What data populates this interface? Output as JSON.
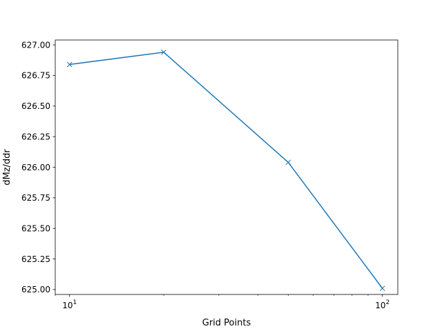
{
  "chart_data": {
    "type": "line",
    "title": "",
    "xlabel": "Grid Points",
    "ylabel": "dMz/ddr",
    "xscale": "log",
    "xlim": [
      9.0,
      112
    ],
    "ylim": [
      624.96,
      627.04
    ],
    "grid": false,
    "legend": "none",
    "x_ticks": [
      {
        "value": 10,
        "base": "10",
        "exp": "1"
      },
      {
        "value": 100,
        "base": "10",
        "exp": "2"
      }
    ],
    "y_ticks": [
      {
        "value": 625.0,
        "label": "625.00"
      },
      {
        "value": 625.25,
        "label": "625.25"
      },
      {
        "value": 625.5,
        "label": "625.50"
      },
      {
        "value": 625.75,
        "label": "625.75"
      },
      {
        "value": 626.0,
        "label": "626.00"
      },
      {
        "value": 626.25,
        "label": "626.25"
      },
      {
        "value": 626.5,
        "label": "626.50"
      },
      {
        "value": 626.75,
        "label": "626.75"
      },
      {
        "value": 627.0,
        "label": "627.00"
      }
    ],
    "series": [
      {
        "color": "#1f77b4",
        "marker": "x",
        "x": [
          10,
          20,
          50,
          100
        ],
        "y": [
          626.84,
          626.94,
          626.04,
          625.01
        ]
      }
    ]
  }
}
